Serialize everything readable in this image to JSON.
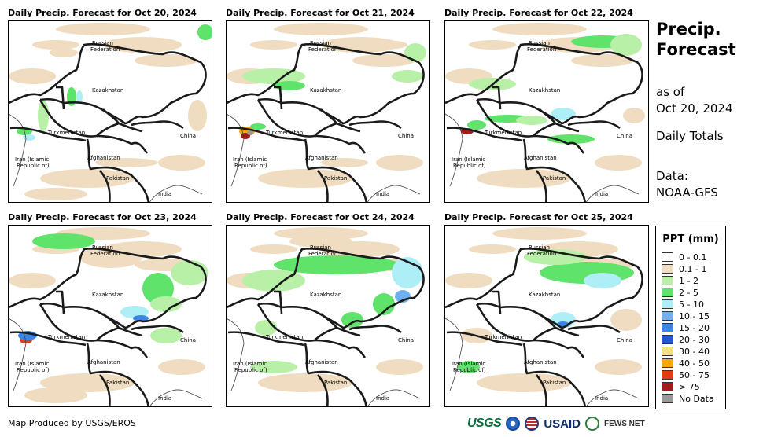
{
  "panels": [
    {
      "title": "Daily Precip. Forecast for Oct 20, 2024"
    },
    {
      "title": "Daily Precip. Forecast for Oct 21, 2024"
    },
    {
      "title": "Daily Precip. Forecast for Oct 22, 2024"
    },
    {
      "title": "Daily Precip. Forecast for Oct 23, 2024"
    },
    {
      "title": "Daily Precip. Forecast for Oct 24, 2024"
    },
    {
      "title": "Daily Precip. Forecast for Oct 25, 2024"
    }
  ],
  "map_labels": {
    "russia_1": "Russian",
    "russia_2": "Federation",
    "kazakhstan": "Kazakhstan",
    "turkmenistan": "Turkmenistan",
    "china": "China",
    "iran_1": "Iran  (Islamic",
    "iran_2": "Republic of)",
    "afghanistan": "Afghanistan",
    "pakistan": "Pakistan",
    "india": "India"
  },
  "side": {
    "title_line1": "Precip.",
    "title_line2": "Forecast",
    "as_of_1": "as of",
    "as_of_2": "Oct 20, 2024",
    "totals": "Daily Totals",
    "data_1": "Data:",
    "data_2": "NOAA-GFS"
  },
  "legend": {
    "title": "PPT (mm)",
    "items": [
      {
        "label": "0 - 0.1",
        "color": "#ffffff"
      },
      {
        "label": "0.1 - 1",
        "color": "#f0dcc0"
      },
      {
        "label": "1 - 2",
        "color": "#b8f0a8"
      },
      {
        "label": "2 - 5",
        "color": "#5fe36a"
      },
      {
        "label": "5 - 10",
        "color": "#aeeef7"
      },
      {
        "label": "10 - 15",
        "color": "#6fb0f0"
      },
      {
        "label": "15 - 20",
        "color": "#3a86e8"
      },
      {
        "label": "20 - 30",
        "color": "#1f58d6"
      },
      {
        "label": "30 - 40",
        "color": "#f5e27a"
      },
      {
        "label": "40 - 50",
        "color": "#f5a800"
      },
      {
        "label": "50 - 75",
        "color": "#e83a10"
      },
      {
        "label": "> 75",
        "color": "#a31a1a"
      },
      {
        "label": "No Data",
        "color": "#9a9a9a"
      }
    ]
  },
  "footer": {
    "credit": "Map Produced by USGS/EROS",
    "usgs": "USGS",
    "usaid": "USAID",
    "fews": "FEWS NET"
  }
}
